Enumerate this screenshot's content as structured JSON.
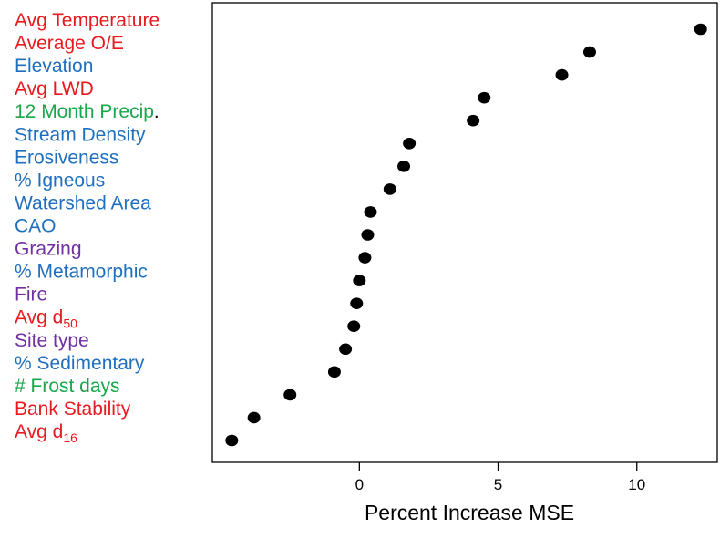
{
  "chart_data": {
    "type": "scatter",
    "xlabel": "Percent Increase MSE",
    "xlim": [
      -5.3,
      12.9
    ],
    "xticks": [
      0,
      5,
      10
    ],
    "grid": false,
    "points": [
      {
        "label": "Avg Temperature",
        "sub": "",
        "x": 12.3,
        "color": "#e8191f"
      },
      {
        "label": "Average O/E",
        "sub": "",
        "x": 8.3,
        "color": "#e8191f"
      },
      {
        "label": "Elevation",
        "sub": "",
        "x": 7.3,
        "color": "#1f6fbf"
      },
      {
        "label": "Avg LWD",
        "sub": "",
        "x": 4.5,
        "color": "#e8191f"
      },
      {
        "label": "12 Month Precip",
        "sub": "",
        "suffix": ".",
        "x": 4.1,
        "color": "#1aa64a"
      },
      {
        "label": "Stream Density",
        "sub": "",
        "x": 1.8,
        "color": "#1f6fbf"
      },
      {
        "label": "Erosiveness",
        "sub": "",
        "x": 1.6,
        "color": "#1f6fbf"
      },
      {
        "label": "% Igneous",
        "sub": "",
        "x": 1.1,
        "color": "#1f6fbf"
      },
      {
        "label": "Watershed Area",
        "sub": "",
        "x": 0.4,
        "color": "#1f6fbf"
      },
      {
        "label": "CAO",
        "sub": "",
        "x": 0.3,
        "color": "#1f6fbf"
      },
      {
        "label": "Grazing",
        "sub": "",
        "x": 0.2,
        "color": "#7030a0"
      },
      {
        "label": "% Metamorphic",
        "sub": "",
        "x": 0.0,
        "color": "#1f6fbf"
      },
      {
        "label": "Fire",
        "sub": "",
        "x": -0.1,
        "color": "#7030a0"
      },
      {
        "label": "Avg d",
        "sub": "50",
        "x": -0.2,
        "color": "#e8191f"
      },
      {
        "label": "Site type",
        "sub": "",
        "x": -0.5,
        "color": "#7030a0"
      },
      {
        "label": "% Sedimentary",
        "sub": "",
        "x": -0.9,
        "color": "#1f6fbf"
      },
      {
        "label": "# Frost days",
        "sub": "",
        "x": -2.5,
        "color": "#1aa64a"
      },
      {
        "label": "Bank Stability",
        "sub": "",
        "x": -3.8,
        "color": "#e8191f"
      },
      {
        "label": "Avg d",
        "sub": "16",
        "x": -4.6,
        "color": "#e8191f"
      }
    ]
  }
}
